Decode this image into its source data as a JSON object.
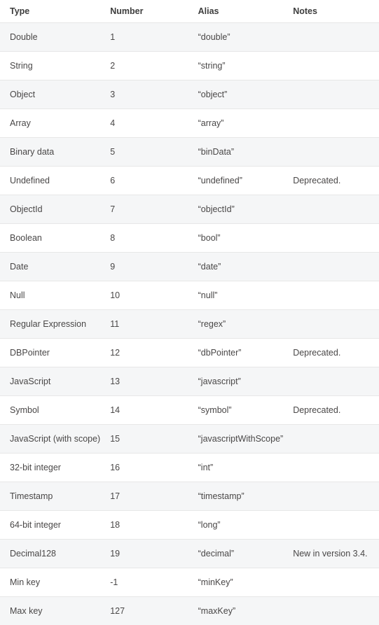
{
  "table": {
    "headers": [
      "Type",
      "Number",
      "Alias",
      "Notes"
    ],
    "rows": [
      [
        "Double",
        "1",
        "“double”",
        ""
      ],
      [
        "String",
        "2",
        "“string”",
        ""
      ],
      [
        "Object",
        "3",
        "“object”",
        ""
      ],
      [
        "Array",
        "4",
        "“array”",
        ""
      ],
      [
        "Binary data",
        "5",
        "“binData”",
        ""
      ],
      [
        "Undefined",
        "6",
        "“undefined”",
        "Deprecated."
      ],
      [
        "ObjectId",
        "7",
        "“objectId”",
        ""
      ],
      [
        "Boolean",
        "8",
        "“bool”",
        ""
      ],
      [
        "Date",
        "9",
        "“date”",
        ""
      ],
      [
        "Null",
        "10",
        "“null”",
        ""
      ],
      [
        "Regular Expression",
        "11",
        "“regex”",
        ""
      ],
      [
        "DBPointer",
        "12",
        "“dbPointer”",
        "Deprecated."
      ],
      [
        "JavaScript",
        "13",
        "“javascript”",
        ""
      ],
      [
        "Symbol",
        "14",
        "“symbol”",
        "Deprecated."
      ],
      [
        "JavaScript (with scope)",
        "15",
        "“javascriptWithScope”",
        ""
      ],
      [
        "32-bit integer",
        "16",
        "“int”",
        ""
      ],
      [
        "Timestamp",
        "17",
        "“timestamp”",
        ""
      ],
      [
        "64-bit integer",
        "18",
        "“long”",
        ""
      ],
      [
        "Decimal128",
        "19",
        "“decimal”",
        "New in version 3.4."
      ],
      [
        "Min key",
        "-1",
        "“minKey”",
        ""
      ],
      [
        "Max key",
        "127",
        "“maxKey”",
        ""
      ]
    ]
  }
}
